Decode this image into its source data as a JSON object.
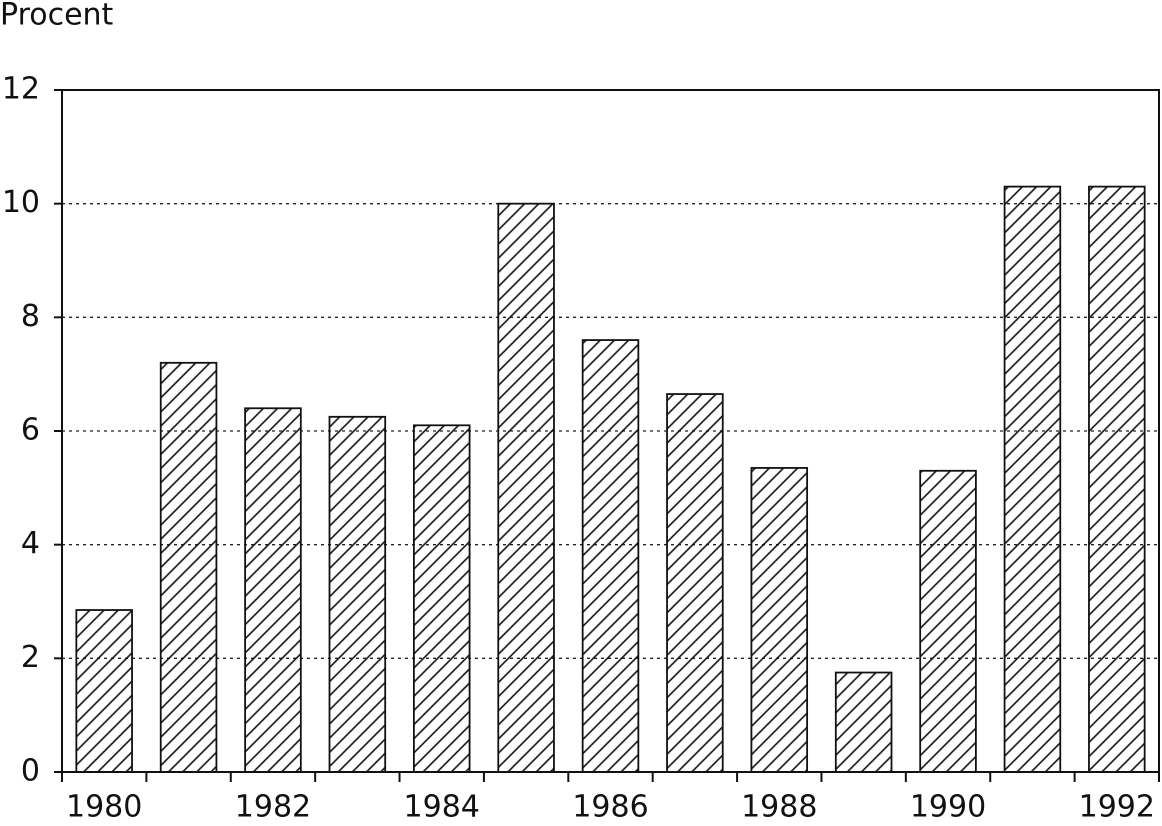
{
  "chart_data": {
    "type": "bar",
    "y_label": "Procent",
    "categories": [
      "1980",
      null,
      "1982",
      null,
      "1984",
      null,
      "1986",
      null,
      "1988",
      null,
      "1990",
      null,
      "1992"
    ],
    "values": [
      2.85,
      7.2,
      6.4,
      6.25,
      6.1,
      10.0,
      7.6,
      6.65,
      5.35,
      1.75,
      5.3,
      10.3,
      10.3
    ],
    "color": "#111111",
    "ylim": [
      0,
      12
    ],
    "yticks": [
      0,
      2,
      4,
      6,
      8,
      10,
      12
    ],
    "grid": true
  }
}
